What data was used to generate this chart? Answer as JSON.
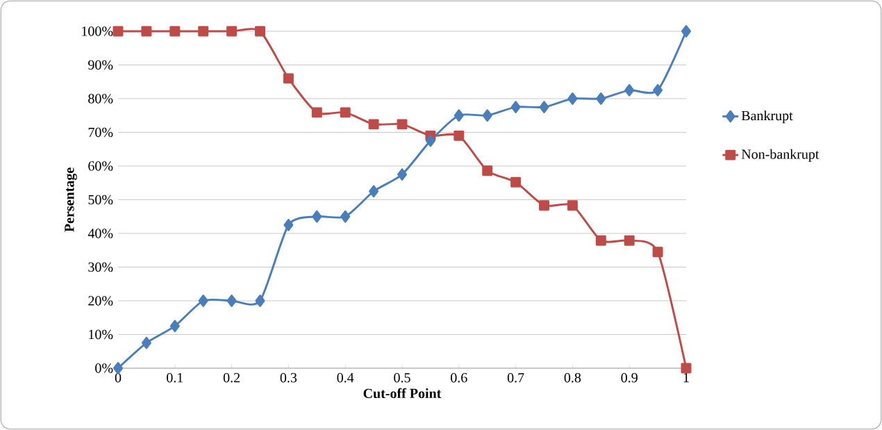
{
  "chart_data": {
    "type": "line",
    "xlabel": "Cut-off Point",
    "ylabel": "Persentage",
    "x": [
      0,
      0.05,
      0.1,
      0.15,
      0.2,
      0.25,
      0.3,
      0.35,
      0.4,
      0.45,
      0.5,
      0.55,
      0.6,
      0.65,
      0.7,
      0.75,
      0.8,
      0.85,
      0.9,
      0.95,
      1
    ],
    "series": [
      {
        "name": "Bankrupt",
        "color": "#4a7ebb",
        "marker": "diamond",
        "values": [
          0,
          7.5,
          12.5,
          20,
          20,
          20,
          42.5,
          45,
          45,
          52.5,
          57.5,
          67.5,
          75,
          75,
          77.5,
          77.5,
          80,
          80,
          82.5,
          82.5,
          100
        ]
      },
      {
        "name": "Non-bankrupt",
        "color": "#be4b48",
        "marker": "square",
        "values": [
          100,
          100,
          100,
          100,
          100,
          100,
          86,
          75.9,
          75.9,
          72.4,
          72.4,
          69,
          69,
          58.6,
          55.2,
          48.3,
          48.3,
          37.9,
          37.9,
          34.5,
          0
        ]
      }
    ],
    "xlim": [
      0,
      1
    ],
    "xticks": [
      0,
      0.1,
      0.2,
      0.3,
      0.4,
      0.5,
      0.6,
      0.7,
      0.8,
      0.9,
      1
    ],
    "ylim": [
      0,
      100
    ],
    "yticks": [
      {
        "value": 0,
        "label": "0%"
      },
      {
        "value": 10,
        "label": "10%"
      },
      {
        "value": 20,
        "label": "20%"
      },
      {
        "value": 30,
        "label": "30%"
      },
      {
        "value": 40,
        "label": "40%"
      },
      {
        "value": 50,
        "label": "50%"
      },
      {
        "value": 60,
        "label": "60%"
      },
      {
        "value": 70,
        "label": "70%"
      },
      {
        "value": 80,
        "label": "80%"
      },
      {
        "value": 90,
        "label": "90%"
      },
      {
        "value": 100,
        "label": "100%"
      }
    ],
    "grid": "y",
    "legend": "right",
    "line_style": "solid"
  }
}
